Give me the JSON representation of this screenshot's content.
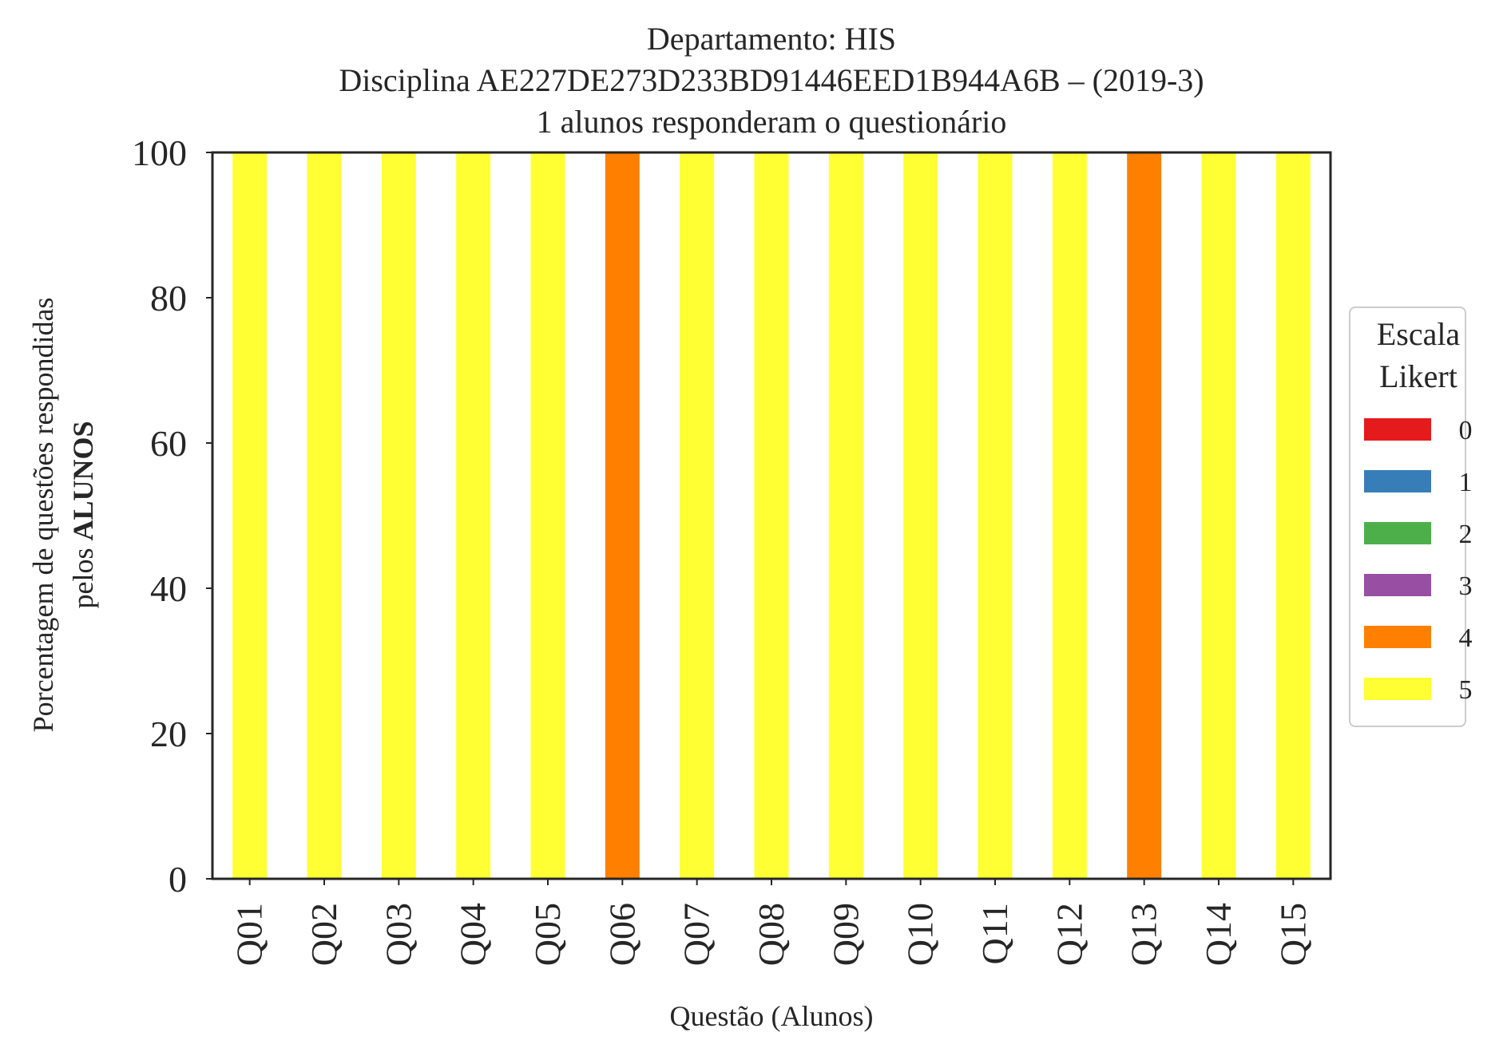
{
  "chart_data": {
    "type": "bar",
    "stacked": true,
    "title_lines": [
      "Departamento: HIS",
      "Disciplina AE227DE273D233BD91446EED1B944A6B – (2019-3)",
      "1 alunos responderam o questionário"
    ],
    "xlabel": "Questão (Alunos)",
    "ylabel_line1": "Porcentagem de questões respondidas",
    "ylabel_line2_prefix": "pelos ",
    "ylabel_line2_bold": "ALUNOS",
    "ylim": [
      0,
      100
    ],
    "yticks": [
      0,
      20,
      40,
      60,
      80,
      100
    ],
    "categories": [
      "Q01",
      "Q02",
      "Q03",
      "Q04",
      "Q05",
      "Q06",
      "Q07",
      "Q08",
      "Q09",
      "Q10",
      "Q11",
      "Q12",
      "Q13",
      "Q14",
      "Q15"
    ],
    "series": [
      {
        "name": "0",
        "color": "#e41a1c",
        "values": [
          0,
          0,
          0,
          0,
          0,
          0,
          0,
          0,
          0,
          0,
          0,
          0,
          0,
          0,
          0
        ]
      },
      {
        "name": "1",
        "color": "#377eb8",
        "values": [
          0,
          0,
          0,
          0,
          0,
          0,
          0,
          0,
          0,
          0,
          0,
          0,
          0,
          0,
          0
        ]
      },
      {
        "name": "2",
        "color": "#4daf4a",
        "values": [
          0,
          0,
          0,
          0,
          0,
          0,
          0,
          0,
          0,
          0,
          0,
          0,
          0,
          0,
          0
        ]
      },
      {
        "name": "3",
        "color": "#984ea3",
        "values": [
          0,
          0,
          0,
          0,
          0,
          0,
          0,
          0,
          0,
          0,
          0,
          0,
          0,
          0,
          0
        ]
      },
      {
        "name": "4",
        "color": "#ff7f00",
        "values": [
          0,
          0,
          0,
          0,
          0,
          100,
          0,
          0,
          0,
          0,
          0,
          0,
          100,
          0,
          0
        ]
      },
      {
        "name": "5",
        "color": "#ffff33",
        "values": [
          100,
          100,
          100,
          100,
          100,
          0,
          100,
          100,
          100,
          100,
          100,
          100,
          0,
          100,
          100
        ]
      }
    ],
    "legend": {
      "title_lines": [
        "Escala",
        "Likert"
      ],
      "placement": "center-right outside"
    },
    "grid": false
  }
}
